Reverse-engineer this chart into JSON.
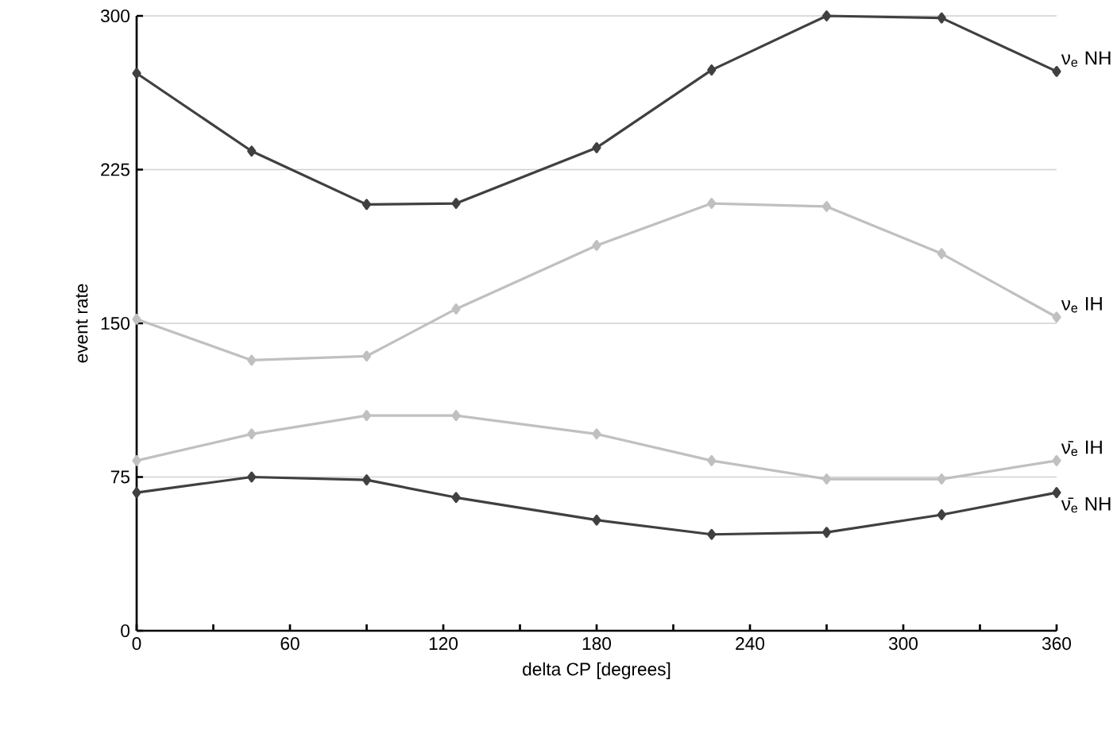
{
  "chart_data": {
    "type": "line",
    "xlabel": "delta CP  [degrees]",
    "ylabel": "event rate",
    "x": [
      0,
      45,
      90,
      125,
      180,
      225,
      270,
      315,
      360
    ],
    "series": [
      {
        "name": "ν$_{e}$ NH",
        "color": "#404040",
        "values": [
          272,
          234,
          208,
          208.5,
          235.7,
          273.6,
          300,
          299,
          272.9
        ]
      },
      {
        "name": "ν$_{e}$ IH",
        "color": "#c0c0c0",
        "values": [
          152,
          132,
          134,
          157,
          188,
          208.5,
          207,
          184,
          153
        ]
      },
      {
        "name": "ν̄$_{e}$ IH",
        "color": "#c0c0c0",
        "values": [
          83,
          96,
          105,
          105,
          96,
          83,
          74,
          74,
          83
        ]
      },
      {
        "name": "ν̄$_{e}$ NH",
        "color": "#404040",
        "values": [
          67.4,
          75,
          73.6,
          65,
          54,
          47,
          48,
          56.6,
          67.4
        ]
      }
    ],
    "xlim": [
      0,
      360
    ],
    "ylim": [
      0,
      300
    ],
    "xticks": [
      0,
      {
        "value": 30,
        "label": null
      },
      60,
      {
        "value": 90,
        "label": null
      },
      120,
      {
        "value": 150,
        "label": null
      },
      180,
      {
        "value": 210,
        "label": null
      },
      240,
      {
        "value": 270,
        "label": null
      },
      300,
      {
        "value": 330,
        "label": null
      },
      360
    ],
    "yticks": [
      0,
      75,
      150,
      225,
      300
    ],
    "grid": "y",
    "marker": "diamond",
    "line_style": "solid",
    "legend": false
  }
}
